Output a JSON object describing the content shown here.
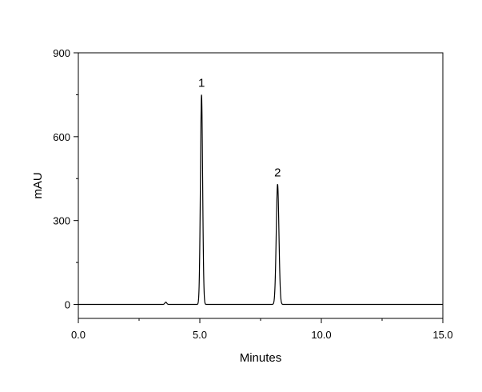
{
  "chart_data": {
    "type": "line",
    "xlabel": "Minutes",
    "ylabel": "mAU",
    "xlim": [
      0,
      15
    ],
    "ylim": [
      -50,
      900
    ],
    "x_ticks": [
      0,
      5,
      10,
      15
    ],
    "x_tick_labels": [
      "0.0",
      "5.0",
      "10.0",
      "15.0"
    ],
    "x_minor_ticks": [
      2.5,
      7.5,
      12.5
    ],
    "y_ticks": [
      0,
      300,
      600,
      900
    ],
    "y_tick_labels": [
      "0",
      "300",
      "600",
      "900"
    ],
    "y_minor_ticks": [
      150,
      450,
      750
    ],
    "grid": false,
    "legend": "none",
    "baseline": 0,
    "peaks": [
      {
        "label": "1",
        "retention_time": 5.07,
        "height": 750,
        "width_sigma": 0.045
      },
      {
        "label": "2",
        "retention_time": 8.2,
        "height": 430,
        "width_sigma": 0.055
      }
    ],
    "minor_peaks": [
      {
        "retention_time": 3.6,
        "height": 8,
        "width_sigma": 0.04
      }
    ],
    "line_color": "#000000"
  }
}
